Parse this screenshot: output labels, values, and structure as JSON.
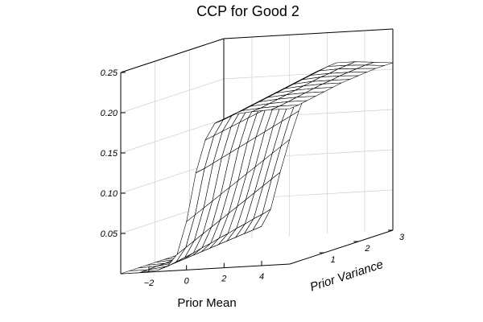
{
  "chart_data": {
    "type": "surface",
    "title": "CCP for Good 2",
    "xlabel": "Prior Mean",
    "ylabel": "Prior Variance",
    "zlabel": "",
    "xlim": [
      -3.5,
      5.5
    ],
    "ylim": [
      0,
      3
    ],
    "zlim": [
      0,
      0.25
    ],
    "x_ticks": [
      -2,
      0,
      2,
      4
    ],
    "y_ticks": [
      1,
      2,
      3
    ],
    "z_ticks": [
      0.05,
      0.1,
      0.15,
      0.2,
      0.25
    ],
    "z_tick_labels": [
      "0.05",
      "0.10",
      "0.15",
      "0.20",
      "0.25"
    ],
    "x_tick_labels": [
      "−2",
      "0",
      "2",
      "4"
    ],
    "y_tick_labels": [
      "1",
      "2",
      "3"
    ],
    "grid": true,
    "x": [
      -3.5,
      -2.5,
      -1.5,
      -1.0,
      -0.5,
      0.0,
      0.5,
      1.0,
      1.5,
      2.5,
      3.5,
      4.5,
      5.5
    ],
    "y": [
      0.0,
      0.25,
      0.5,
      0.75,
      1.0,
      1.25,
      1.5,
      1.75,
      2.0,
      2.25,
      2.5,
      2.75,
      3.0
    ],
    "z": [
      [
        0.0,
        0.0,
        0.002,
        0.006,
        0.02,
        0.06,
        0.12,
        0.16,
        0.18,
        0.19,
        0.192,
        0.193,
        0.193
      ],
      [
        0.0,
        0.0,
        0.003,
        0.008,
        0.025,
        0.065,
        0.122,
        0.162,
        0.181,
        0.191,
        0.193,
        0.194,
        0.194
      ],
      [
        0.0,
        0.001,
        0.004,
        0.01,
        0.03,
        0.07,
        0.125,
        0.164,
        0.183,
        0.193,
        0.195,
        0.196,
        0.196
      ],
      [
        0.0,
        0.001,
        0.005,
        0.012,
        0.035,
        0.075,
        0.128,
        0.166,
        0.185,
        0.195,
        0.197,
        0.198,
        0.198
      ],
      [
        0.0,
        0.002,
        0.006,
        0.015,
        0.04,
        0.08,
        0.131,
        0.168,
        0.187,
        0.197,
        0.199,
        0.2,
        0.2
      ],
      [
        0.0,
        0.002,
        0.007,
        0.017,
        0.045,
        0.085,
        0.134,
        0.17,
        0.189,
        0.199,
        0.201,
        0.202,
        0.202
      ],
      [
        0.0,
        0.003,
        0.008,
        0.02,
        0.05,
        0.09,
        0.137,
        0.172,
        0.191,
        0.201,
        0.203,
        0.204,
        0.204
      ],
      [
        0.0,
        0.003,
        0.009,
        0.022,
        0.055,
        0.095,
        0.14,
        0.174,
        0.193,
        0.203,
        0.205,
        0.205,
        0.205
      ],
      [
        0.0,
        0.004,
        0.01,
        0.025,
        0.06,
        0.1,
        0.143,
        0.176,
        0.195,
        0.205,
        0.207,
        0.207,
        0.206
      ],
      [
        0.0,
        0.004,
        0.011,
        0.027,
        0.065,
        0.105,
        0.146,
        0.178,
        0.197,
        0.207,
        0.208,
        0.208,
        0.207
      ],
      [
        0.0,
        0.005,
        0.012,
        0.03,
        0.07,
        0.11,
        0.149,
        0.18,
        0.199,
        0.209,
        0.21,
        0.209,
        0.208
      ],
      [
        0.0,
        0.005,
        0.013,
        0.032,
        0.075,
        0.115,
        0.152,
        0.182,
        0.201,
        0.211,
        0.211,
        0.21,
        0.208
      ],
      [
        0.0,
        0.006,
        0.014,
        0.035,
        0.08,
        0.12,
        0.155,
        0.184,
        0.203,
        0.212,
        0.212,
        0.21,
        0.208
      ]
    ]
  }
}
